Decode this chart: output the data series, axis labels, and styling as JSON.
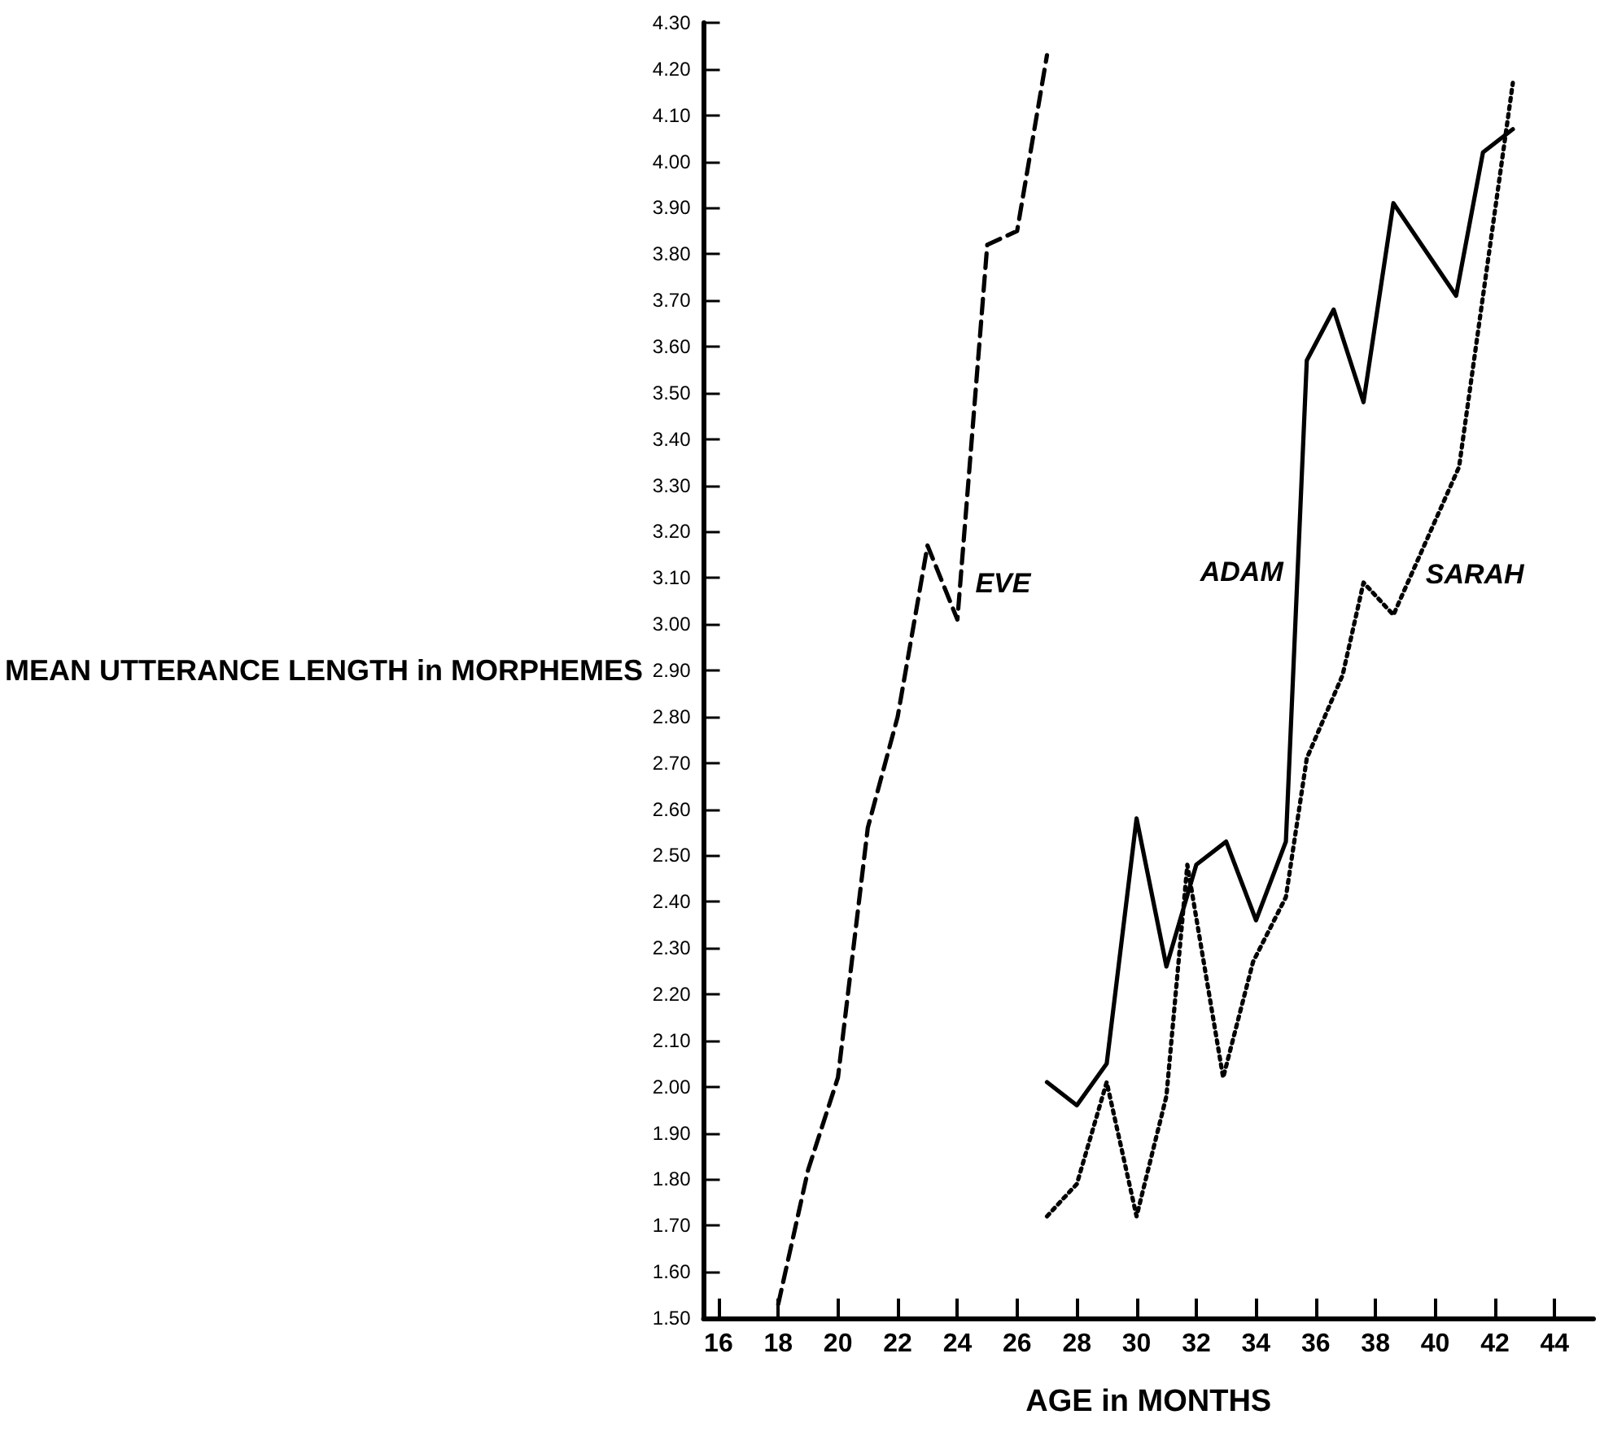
{
  "chart_data": {
    "type": "line",
    "xlabel": "AGE in MONTHS",
    "ylabel": "MEAN UTTERANCE LENGTH in MORPHEMES",
    "xlim": [
      15.5,
      45.3
    ],
    "xticks": [
      16,
      18,
      20,
      22,
      24,
      26,
      28,
      30,
      32,
      34,
      36,
      38,
      40,
      42,
      44
    ],
    "ylim": [
      1.5,
      4.3
    ],
    "yticks": [
      {
        "value": 1.5,
        "label": "1.50"
      },
      {
        "value": 1.6,
        "label": "1.60"
      },
      {
        "value": 1.7,
        "label": "1.70"
      },
      {
        "value": 1.8,
        "label": "1.80"
      },
      {
        "value": 1.9,
        "label": "1.90"
      },
      {
        "value": 2.0,
        "label": "2.00"
      },
      {
        "value": 2.1,
        "label": "2.10"
      },
      {
        "value": 2.2,
        "label": "2.20"
      },
      {
        "value": 2.3,
        "label": "2.30"
      },
      {
        "value": 2.4,
        "label": "2.40"
      },
      {
        "value": 2.5,
        "label": "2.50"
      },
      {
        "value": 2.6,
        "label": "2.60"
      },
      {
        "value": 2.7,
        "label": "2.70"
      },
      {
        "value": 2.8,
        "label": "2.80"
      },
      {
        "value": 2.9,
        "label": "2.90"
      },
      {
        "value": 3.0,
        "label": "3.00"
      },
      {
        "value": 3.1,
        "label": "3.10"
      },
      {
        "value": 3.2,
        "label": "3.20"
      },
      {
        "value": 3.3,
        "label": "3.30"
      },
      {
        "value": 3.4,
        "label": "3.40"
      },
      {
        "value": 3.5,
        "label": "3.50"
      },
      {
        "value": 3.6,
        "label": "3.60"
      },
      {
        "value": 3.7,
        "label": "3.70"
      },
      {
        "value": 3.8,
        "label": "3.80"
      },
      {
        "value": 3.9,
        "label": "3.90"
      },
      {
        "value": 4.0,
        "label": "4.00"
      },
      {
        "value": 4.1,
        "label": "4.10"
      },
      {
        "value": 4.2,
        "label": "4.20"
      },
      {
        "value": 4.3,
        "label": "4.30"
      }
    ],
    "grid": false,
    "legend": false,
    "marker": "none",
    "series": [
      {
        "name": "EVE",
        "color": "#000000",
        "line_style": "dashed",
        "x": [
          18,
          19,
          20,
          21,
          22,
          23,
          24,
          25,
          26,
          27
        ],
        "values": [
          1.53,
          1.82,
          2.02,
          2.56,
          2.8,
          3.17,
          3.01,
          3.82,
          3.85,
          4.23
        ]
      },
      {
        "name": "ADAM",
        "color": "#000000",
        "line_style": "solid",
        "x": [
          27,
          28,
          29,
          30,
          31,
          32,
          33,
          34,
          35,
          35.7,
          36.6,
          37.6,
          38.6,
          40.7,
          41.6,
          42.6
        ],
        "values": [
          2.01,
          1.96,
          2.05,
          2.58,
          2.26,
          2.48,
          2.53,
          2.36,
          2.53,
          3.57,
          3.68,
          3.48,
          3.91,
          3.71,
          4.02,
          4.07
        ]
      },
      {
        "name": "SARAH",
        "color": "#000000",
        "line_style": "dotted",
        "x": [
          27,
          28,
          29,
          30,
          31,
          31.7,
          32.9,
          33.9,
          35,
          35.7,
          36.9,
          37.6,
          38.6,
          40.8,
          42.6
        ],
        "values": [
          1.72,
          1.79,
          2.01,
          1.72,
          1.98,
          2.48,
          2.02,
          2.27,
          2.41,
          2.71,
          2.89,
          3.09,
          3.02,
          3.34,
          4.17
        ]
      }
    ]
  }
}
